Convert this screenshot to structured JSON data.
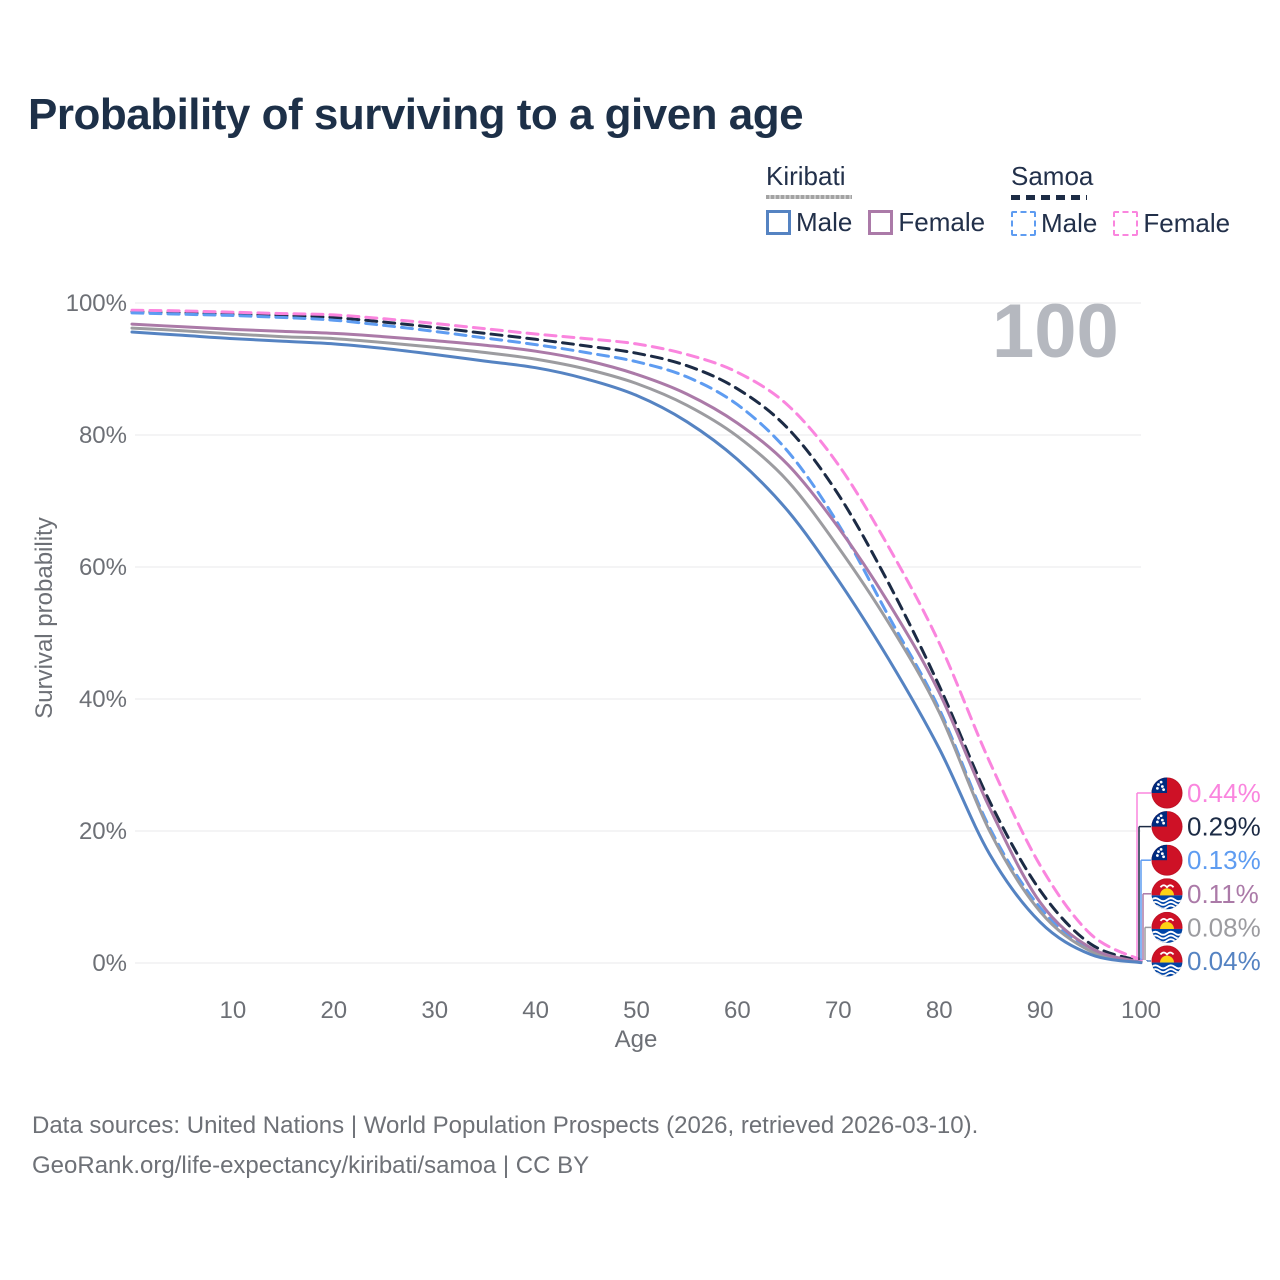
{
  "title": "Probability of surviving to a given age",
  "watermark_age_indicator": "100",
  "legend": {
    "groups": [
      {
        "name": "Kiribati",
        "line_style": "solid",
        "underline_color": "#a3a3a3",
        "items": [
          {
            "label": "Male",
            "color": "#5583c2"
          },
          {
            "label": "Female",
            "color": "#ab7aa8"
          }
        ]
      },
      {
        "name": "Samoa",
        "line_style": "dashed",
        "underline_color": "#1d2c45",
        "items": [
          {
            "label": "Male",
            "color": "#5e9cf1"
          },
          {
            "label": "Female",
            "color": "#fa85de"
          }
        ]
      }
    ]
  },
  "chart_data": {
    "type": "line",
    "title": "Probability of surviving to a given age",
    "xlabel": "Age",
    "ylabel": "Survival probability",
    "xlim": [
      0,
      100
    ],
    "ylim": [
      0,
      100
    ],
    "grid": "horizontal-only",
    "legend_position": "top-right",
    "xticks": [
      10,
      20,
      30,
      40,
      50,
      60,
      70,
      80,
      90,
      100
    ],
    "yticks": [
      {
        "value": 0,
        "label": "0%"
      },
      {
        "value": 20,
        "label": "20%"
      },
      {
        "value": 40,
        "label": "40%"
      },
      {
        "value": 60,
        "label": "60%"
      },
      {
        "value": 80,
        "label": "80%"
      },
      {
        "value": 100,
        "label": "100%"
      }
    ],
    "x": [
      0,
      5,
      10,
      15,
      20,
      25,
      30,
      35,
      40,
      45,
      50,
      55,
      60,
      65,
      70,
      75,
      80,
      85,
      90,
      95,
      100
    ],
    "series": [
      {
        "name": "Samoa Female",
        "country": "Samoa",
        "sex": "Female",
        "flag": "samoa",
        "color": "#fa85de",
        "dashed": true,
        "end_label": "0.44%",
        "values": [
          98.9,
          98.8,
          98.6,
          98.4,
          98.2,
          97.6,
          96.9,
          96.1,
          95.3,
          94.6,
          93.8,
          92.2,
          89.5,
          84.5,
          75.5,
          63.0,
          48.5,
          30.5,
          14.8,
          4.4,
          0.44
        ]
      },
      {
        "name": "Samoa Both sexes",
        "country": "Samoa",
        "sex": "Both",
        "flag": "samoa",
        "color": "#1c2b45",
        "dashed": true,
        "end_label": "0.29%",
        "values": [
          98.7,
          98.5,
          98.3,
          98.1,
          97.8,
          97.1,
          96.3,
          95.4,
          94.5,
          93.5,
          92.4,
          90.5,
          87.0,
          81.0,
          71.0,
          57.5,
          42.0,
          24.5,
          11.0,
          2.9,
          0.29
        ]
      },
      {
        "name": "Samoa Male",
        "country": "Samoa",
        "sex": "Male",
        "flag": "samoa",
        "color": "#5e9cf1",
        "dashed": true,
        "end_label": "0.13%",
        "values": [
          98.5,
          98.3,
          98.1,
          97.8,
          97.4,
          96.6,
          95.7,
          94.7,
          93.7,
          92.5,
          91.1,
          88.8,
          84.6,
          77.5,
          66.5,
          52.5,
          38.5,
          20.5,
          8.4,
          1.9,
          0.13
        ]
      },
      {
        "name": "Kiribati Female",
        "country": "Kiribati",
        "sex": "Female",
        "flag": "kiribati",
        "color": "#ab7aa8",
        "dashed": false,
        "end_label": "0.11%",
        "values": [
          96.8,
          96.4,
          96.0,
          95.7,
          95.4,
          94.9,
          94.3,
          93.6,
          92.7,
          91.3,
          89.2,
          86.2,
          81.8,
          75.5,
          66.0,
          54.5,
          41.0,
          23.5,
          9.2,
          2.3,
          0.11
        ]
      },
      {
        "name": "Kiribati Both sexes",
        "country": "Kiribati",
        "sex": "Both",
        "flag": "kiribati",
        "color": "#9c9ca0",
        "dashed": false,
        "end_label": "0.08%",
        "values": [
          96.2,
          95.8,
          95.3,
          94.9,
          94.6,
          94.0,
          93.3,
          92.5,
          91.5,
          90.0,
          87.8,
          84.5,
          79.8,
          73.0,
          63.0,
          51.5,
          38.0,
          20.0,
          7.8,
          1.8,
          0.08
        ]
      },
      {
        "name": "Kiribati Male",
        "country": "Kiribati",
        "sex": "Male",
        "flag": "kiribati",
        "color": "#5583c2",
        "dashed": false,
        "end_label": "0.04%",
        "values": [
          95.6,
          95.1,
          94.6,
          94.2,
          93.8,
          93.1,
          92.2,
          91.2,
          90.2,
          88.5,
          86.0,
          82.0,
          76.3,
          68.5,
          58.0,
          46.0,
          32.5,
          16.5,
          6.2,
          1.3,
          0.04
        ]
      }
    ]
  },
  "footer": {
    "line1": "Data sources: United Nations | World Population Prospects (2026, retrieved 2026-03-10).",
    "line2": "GeoRank.org/life-expectancy/kiribati/samoa | CC BY"
  }
}
